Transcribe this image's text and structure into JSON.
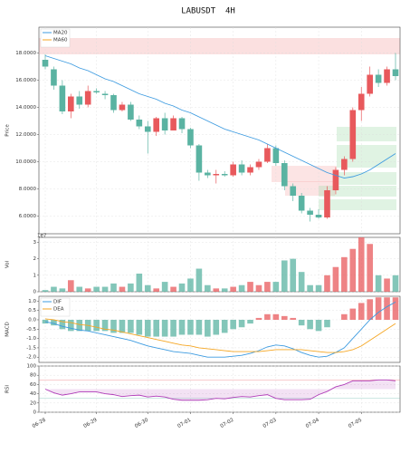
{
  "chart_data": [
    {
      "type": "candlestick",
      "title": "LABUSDT  4H",
      "y_label": "Price",
      "categories": [
        "06-28",
        null,
        null,
        null,
        null,
        null,
        "06-29",
        null,
        null,
        null,
        null,
        null,
        "06-30",
        null,
        null,
        null,
        null,
        "07-01",
        null,
        null,
        null,
        null,
        "07-02",
        null,
        null,
        null,
        null,
        "07-03",
        null,
        null,
        null,
        null,
        "07-04",
        null,
        null,
        null,
        null,
        "07-05",
        null,
        null,
        null,
        null
      ],
      "open": [
        17.5,
        16.8,
        15.6,
        13.7,
        14.8,
        14.2,
        15.2,
        15.0,
        14.9,
        13.8,
        14.2,
        13.1,
        12.6,
        12.2,
        13.2,
        12.3,
        13.2,
        12.4,
        11.2,
        9.2,
        9.0,
        9.1,
        9.0,
        9.8,
        9.2,
        9.6,
        10.0,
        11.0,
        9.9,
        8.2,
        7.5,
        6.4,
        6.1,
        5.9,
        7.9,
        9.4,
        10.2,
        13.8,
        15.0,
        16.4,
        15.8,
        16.8
      ],
      "high": [
        17.9,
        17.0,
        16.0,
        15.0,
        15.2,
        15.6,
        15.4,
        15.2,
        15.0,
        14.4,
        14.4,
        13.4,
        13.0,
        13.3,
        13.6,
        13.4,
        13.3,
        12.5,
        11.3,
        9.4,
        9.4,
        9.3,
        10.0,
        10.1,
        9.8,
        10.2,
        11.3,
        11.2,
        10.1,
        8.4,
        7.7,
        6.6,
        6.5,
        8.2,
        9.6,
        10.4,
        14.0,
        15.5,
        17.0,
        16.8,
        17.0,
        18.0
      ],
      "low": [
        16.8,
        15.3,
        13.5,
        13.2,
        13.9,
        14.0,
        15.0,
        14.6,
        13.6,
        13.7,
        13.0,
        12.4,
        10.6,
        11.9,
        12.0,
        12.3,
        12.1,
        11.0,
        8.6,
        8.8,
        8.4,
        8.9,
        8.9,
        9.0,
        9.0,
        9.4,
        9.9,
        9.7,
        7.9,
        7.1,
        6.2,
        5.6,
        5.8,
        5.8,
        7.6,
        9.0,
        10.0,
        13.0,
        14.8,
        15.5,
        15.6,
        16.0
      ],
      "close": [
        17.0,
        15.6,
        13.7,
        14.8,
        14.2,
        15.2,
        15.1,
        14.9,
        13.8,
        14.2,
        13.1,
        12.6,
        12.2,
        13.2,
        12.3,
        13.2,
        12.4,
        11.2,
        9.2,
        9.0,
        9.1,
        9.0,
        9.8,
        9.2,
        9.6,
        10.0,
        11.0,
        9.9,
        8.2,
        7.5,
        6.4,
        6.1,
        5.9,
        7.9,
        9.4,
        10.2,
        13.8,
        15.0,
        16.4,
        15.8,
        16.8,
        16.3
      ],
      "up_color": "#e8595c",
      "down_color": "#5ab3a2",
      "series": [
        {
          "name": "MA20",
          "color": "#3d9be0",
          "values": [
            17.8,
            17.6,
            17.4,
            17.2,
            16.9,
            16.7,
            16.4,
            16.1,
            15.9,
            15.6,
            15.3,
            15.0,
            14.8,
            14.6,
            14.3,
            14.1,
            13.8,
            13.6,
            13.3,
            13.0,
            12.7,
            12.4,
            12.2,
            12.0,
            11.8,
            11.6,
            11.3,
            11.0,
            10.7,
            10.4,
            10.1,
            9.8,
            9.5,
            9.2,
            9.0,
            8.8,
            8.9,
            9.1,
            9.4,
            9.8,
            10.2,
            10.6
          ]
        },
        {
          "name": "MA60",
          "color": "#f5a623",
          "values": [
            null,
            null,
            null,
            null,
            null,
            null,
            null,
            null,
            null,
            null,
            null,
            null,
            null,
            null,
            null,
            null,
            null,
            null,
            null,
            null,
            null,
            null,
            null,
            null,
            null,
            null,
            null,
            null,
            null,
            null,
            null,
            null,
            null,
            null,
            null,
            null,
            null,
            null,
            null,
            null,
            null,
            null
          ]
        }
      ],
      "ylim": [
        4.7,
        19.9
      ],
      "yticks": [
        {
          "value": 6,
          "label": "6.0000"
        },
        {
          "value": 8,
          "label": "8.0000"
        },
        {
          "value": 10,
          "label": "10.0000"
        },
        {
          "value": 12,
          "label": "12.0000"
        },
        {
          "value": 14,
          "label": "14.0000"
        },
        {
          "value": 16,
          "label": "16.0000"
        },
        {
          "value": 18,
          "label": "18.0000"
        }
      ],
      "grid": true,
      "legend": "upper left"
    },
    {
      "type": "bar",
      "y_label": "Vol",
      "offset_label": "1e7",
      "values": [
        0.1,
        0.3,
        0.2,
        0.7,
        0.3,
        0.2,
        0.3,
        0.3,
        0.5,
        0.3,
        0.5,
        1.1,
        0.4,
        0.2,
        0.6,
        0.3,
        0.5,
        0.8,
        1.4,
        0.4,
        0.2,
        0.2,
        0.3,
        0.4,
        0.6,
        0.4,
        0.6,
        0.6,
        1.9,
        2.0,
        1.2,
        0.4,
        0.4,
        1.0,
        1.5,
        2.1,
        2.6,
        3.3,
        2.9,
        1.0,
        0.8,
        1.0
      ],
      "ylim": [
        0,
        3.3
      ],
      "yticks": [
        0,
        1,
        2,
        3
      ],
      "grid": true
    },
    {
      "type": "macd",
      "y_label": "MACD",
      "series": [
        {
          "name": "DIF",
          "color": "#3d9be0",
          "values": [
            -0.1,
            -0.2,
            -0.35,
            -0.45,
            -0.55,
            -0.6,
            -0.7,
            -0.8,
            -0.9,
            -1.0,
            -1.1,
            -1.25,
            -1.4,
            -1.5,
            -1.6,
            -1.7,
            -1.75,
            -1.8,
            -1.9,
            -2.0,
            -2.0,
            -2.0,
            -1.95,
            -1.9,
            -1.8,
            -1.65,
            -1.45,
            -1.35,
            -1.4,
            -1.55,
            -1.75,
            -1.9,
            -2.0,
            -1.95,
            -1.75,
            -1.5,
            -1.0,
            -0.5,
            0.0,
            0.4,
            0.7,
            0.95
          ]
        },
        {
          "name": "DEA",
          "color": "#f5a623",
          "values": [
            0.05,
            0.0,
            -0.1,
            -0.15,
            -0.25,
            -0.3,
            -0.4,
            -0.5,
            -0.55,
            -0.65,
            -0.75,
            -0.85,
            -0.95,
            -1.05,
            -1.15,
            -1.25,
            -1.35,
            -1.4,
            -1.5,
            -1.55,
            -1.6,
            -1.65,
            -1.7,
            -1.7,
            -1.7,
            -1.7,
            -1.65,
            -1.6,
            -1.6,
            -1.6,
            -1.6,
            -1.65,
            -1.7,
            -1.75,
            -1.75,
            -1.7,
            -1.6,
            -1.4,
            -1.1,
            -0.8,
            -0.5,
            -0.2
          ]
        }
      ],
      "histogram": [
        -0.2,
        -0.3,
        -0.5,
        -0.6,
        -0.6,
        -0.6,
        -0.6,
        -0.6,
        -0.7,
        -0.7,
        -0.7,
        -0.8,
        -0.9,
        -0.9,
        -0.9,
        -0.9,
        -0.8,
        -0.8,
        -0.8,
        -0.9,
        -0.8,
        -0.7,
        -0.5,
        -0.4,
        -0.2,
        0.1,
        0.3,
        0.3,
        0.2,
        0.1,
        -0.3,
        -0.5,
        -0.6,
        -0.4,
        0.0,
        0.3,
        0.6,
        0.9,
        1.1,
        1.2,
        1.2,
        1.2
      ],
      "ylim": [
        -2.28,
        1.26
      ],
      "yticks": [
        {
          "value": -2,
          "label": "-2.0"
        },
        -1.5,
        {
          "value": -1,
          "label": "-1.0"
        },
        -0.5,
        {
          "value": 0,
          "label": "0.0"
        },
        0.5,
        {
          "value": 1,
          "label": "1.0"
        }
      ],
      "grid": true,
      "legend": "upper left"
    },
    {
      "type": "rsi",
      "y_label": "RSI",
      "series": [
        {
          "name": "RSI",
          "color": "#b03cb8",
          "values": [
            50,
            42,
            37,
            40,
            44,
            44,
            44,
            40,
            38,
            34,
            36,
            37,
            33,
            35,
            33,
            28,
            26,
            26,
            26,
            27,
            30,
            29,
            32,
            34,
            33,
            36,
            38,
            30,
            27,
            27,
            27,
            28,
            38,
            45,
            55,
            60,
            68,
            68,
            68,
            70,
            70,
            68
          ]
        }
      ],
      "ref_lines": [
        30,
        70
      ],
      "ylim": [
        0,
        100
      ],
      "yticks": [
        0,
        20,
        40,
        60,
        80,
        100
      ],
      "grid": true
    }
  ]
}
